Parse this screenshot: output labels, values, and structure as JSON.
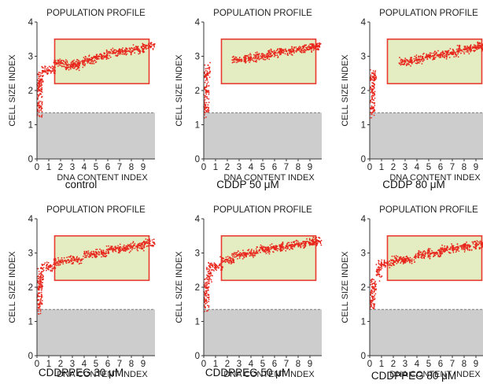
{
  "chart_data": [
    {
      "type": "scatter",
      "title": "POPULATION PROFILE",
      "xlabel": "DNA CONTENT INDEX",
      "ylabel": "CELL SIZE INDEX",
      "xlim": [
        0,
        10
      ],
      "ylim": [
        0,
        4
      ],
      "x_ticks": [
        "0",
        "1",
        "2",
        "3",
        "4",
        "5",
        "6",
        "7",
        "8",
        "9"
      ],
      "y_ticks": [
        "0",
        "1",
        "2",
        "3",
        "4"
      ],
      "gate": {
        "x": [
          1.5,
          9.5
        ],
        "y": [
          2.2,
          3.5
        ]
      },
      "threshold_y": 1.35,
      "caption": "control",
      "series": [
        {
          "values": [
            {
              "x": 0.2,
              "y": 1.5
            },
            {
              "x": 0.2,
              "y": 2.0
            },
            {
              "x": 0.3,
              "y": 2.3
            },
            {
              "x": 1.0,
              "y": 2.6
            },
            {
              "x": 2.0,
              "y": 2.8
            },
            {
              "x": 3.0,
              "y": 2.7
            },
            {
              "x": 3.5,
              "y": 2.8
            },
            {
              "x": 4.5,
              "y": 2.9
            },
            {
              "x": 5.5,
              "y": 3.0
            },
            {
              "x": 6.5,
              "y": 3.1
            },
            {
              "x": 7.5,
              "y": 3.15
            },
            {
              "x": 8.5,
              "y": 3.2
            },
            {
              "x": 9.5,
              "y": 3.3
            }
          ]
        }
      ]
    },
    {
      "type": "scatter",
      "title": "POPULATION PROFILE",
      "xlabel": "DNA CONTENT INDEX",
      "ylabel": "CELL SIZE INDEX",
      "xlim": [
        0,
        10
      ],
      "ylim": [
        0,
        4
      ],
      "x_ticks": [
        "0",
        "1",
        "2",
        "3",
        "4",
        "5",
        "6",
        "7",
        "8",
        "9"
      ],
      "y_ticks": [
        "0",
        "1",
        "2",
        "3",
        "4"
      ],
      "gate": {
        "x": [
          1.5,
          9.5
        ],
        "y": [
          2.2,
          3.5
        ]
      },
      "threshold_y": 1.35,
      "caption": "CDDP  50 μM",
      "series": [
        {
          "values": [
            {
              "x": 0.2,
              "y": 1.5
            },
            {
              "x": 0.2,
              "y": 2.0
            },
            {
              "x": 0.3,
              "y": 2.5
            },
            {
              "x": 3.0,
              "y": 2.9
            },
            {
              "x": 4.0,
              "y": 2.95
            },
            {
              "x": 5.0,
              "y": 3.0
            },
            {
              "x": 6.0,
              "y": 3.1
            },
            {
              "x": 7.0,
              "y": 3.15
            },
            {
              "x": 8.0,
              "y": 3.2
            },
            {
              "x": 9.0,
              "y": 3.25
            },
            {
              "x": 9.7,
              "y": 3.3
            }
          ]
        }
      ]
    },
    {
      "type": "scatter",
      "title": "POPULATION PROFILE",
      "xlabel": "DNA CONTENT INDEX",
      "ylabel": "CELL SIZE INDEX",
      "xlim": [
        0,
        10
      ],
      "ylim": [
        0,
        4
      ],
      "x_ticks": [
        "0",
        "1",
        "2",
        "3",
        "4",
        "5",
        "6",
        "7",
        "8",
        "9"
      ],
      "y_ticks": [
        "0",
        "1",
        "2",
        "3",
        "4"
      ],
      "gate": {
        "x": [
          1.5,
          9.5
        ],
        "y": [
          2.2,
          3.5
        ]
      },
      "threshold_y": 1.35,
      "caption": "CDDP  80 μM",
      "series": [
        {
          "values": [
            {
              "x": 0.2,
              "y": 1.5
            },
            {
              "x": 0.2,
              "y": 2.0
            },
            {
              "x": 0.3,
              "y": 2.4
            },
            {
              "x": 3.0,
              "y": 2.85
            },
            {
              "x": 4.0,
              "y": 2.9
            },
            {
              "x": 5.0,
              "y": 3.0
            },
            {
              "x": 6.0,
              "y": 3.05
            },
            {
              "x": 7.0,
              "y": 3.1
            },
            {
              "x": 8.0,
              "y": 3.2
            },
            {
              "x": 9.0,
              "y": 3.25
            },
            {
              "x": 9.7,
              "y": 3.3
            }
          ]
        }
      ]
    },
    {
      "type": "scatter",
      "title": "POPULATION PROFILE",
      "xlabel": "DNA CONTENT INDEX",
      "ylabel": "CELL SIZE INDEX",
      "xlim": [
        0,
        10
      ],
      "ylim": [
        0,
        4
      ],
      "x_ticks": [
        "0",
        "1",
        "2",
        "3",
        "4",
        "5",
        "6",
        "7",
        "8",
        "9"
      ],
      "y_ticks": [
        "0",
        "1",
        "2",
        "3",
        "4"
      ],
      "gate": {
        "x": [
          1.5,
          9.5
        ],
        "y": [
          2.2,
          3.5
        ]
      },
      "threshold_y": 1.35,
      "caption": "CDDPPEG 30 μM",
      "series": [
        {
          "values": [
            {
              "x": 0.2,
              "y": 1.5
            },
            {
              "x": 0.2,
              "y": 2.0
            },
            {
              "x": 0.3,
              "y": 2.3
            },
            {
              "x": 1.0,
              "y": 2.6
            },
            {
              "x": 2.0,
              "y": 2.75
            },
            {
              "x": 3.2,
              "y": 2.8
            },
            {
              "x": 4.5,
              "y": 2.95
            },
            {
              "x": 5.5,
              "y": 3.0
            },
            {
              "x": 6.5,
              "y": 3.1
            },
            {
              "x": 7.5,
              "y": 3.15
            },
            {
              "x": 8.5,
              "y": 3.2
            },
            {
              "x": 9.5,
              "y": 3.3
            }
          ]
        }
      ]
    },
    {
      "type": "scatter",
      "title": "POPULATION PROFILE",
      "xlabel": "DNA CONTENT INDEX",
      "ylabel": "CELL SIZE INDEX",
      "xlim": [
        0,
        10
      ],
      "ylim": [
        0,
        4
      ],
      "x_ticks": [
        "0",
        "1",
        "2",
        "3",
        "4",
        "5",
        "6",
        "7",
        "8",
        "9"
      ],
      "y_ticks": [
        "0",
        "1",
        "2",
        "3",
        "4"
      ],
      "gate": {
        "x": [
          1.5,
          9.5
        ],
        "y": [
          2.2,
          3.5
        ]
      },
      "threshold_y": 1.35,
      "caption": "CDDPPEG 50 μM",
      "series": [
        {
          "values": [
            {
              "x": 0.2,
              "y": 1.6
            },
            {
              "x": 0.2,
              "y": 2.0
            },
            {
              "x": 0.5,
              "y": 2.4
            },
            {
              "x": 1.0,
              "y": 2.6
            },
            {
              "x": 2.0,
              "y": 2.8
            },
            {
              "x": 3.0,
              "y": 2.95
            },
            {
              "x": 4.0,
              "y": 3.0
            },
            {
              "x": 5.0,
              "y": 3.1
            },
            {
              "x": 6.0,
              "y": 3.15
            },
            {
              "x": 7.0,
              "y": 3.2
            },
            {
              "x": 8.0,
              "y": 3.25
            },
            {
              "x": 9.0,
              "y": 3.3
            },
            {
              "x": 9.7,
              "y": 3.35
            }
          ]
        }
      ]
    },
    {
      "type": "scatter",
      "title": "POPULATION PROFILE",
      "xlabel": "DNA CONTENT INDEX",
      "ylabel": "CELL SIZE INDEX",
      "xlim": [
        0,
        10
      ],
      "ylim": [
        0,
        4
      ],
      "x_ticks": [
        "0",
        "1",
        "2",
        "3",
        "4",
        "5",
        "6",
        "7",
        "8",
        "9"
      ],
      "y_ticks": [
        "0",
        "1",
        "2",
        "3",
        "4"
      ],
      "gate": {
        "x": [
          1.5,
          9.5
        ],
        "y": [
          2.2,
          3.5
        ]
      },
      "threshold_y": 1.35,
      "caption": "CDDPPEG 80 μM",
      "series": [
        {
          "values": [
            {
              "x": 0.2,
              "y": 1.6
            },
            {
              "x": 0.3,
              "y": 2.0
            },
            {
              "x": 0.8,
              "y": 2.5
            },
            {
              "x": 1.5,
              "y": 2.7
            },
            {
              "x": 2.5,
              "y": 2.8
            },
            {
              "x": 3.3,
              "y": 2.8
            },
            {
              "x": 4.5,
              "y": 2.95
            },
            {
              "x": 5.5,
              "y": 3.0
            },
            {
              "x": 6.5,
              "y": 3.1
            },
            {
              "x": 7.5,
              "y": 3.15
            },
            {
              "x": 8.5,
              "y": 3.2
            },
            {
              "x": 9.5,
              "y": 3.25
            }
          ]
        }
      ]
    }
  ],
  "colors": {
    "points": "#e8271d",
    "gate_fill": "#e4edc1",
    "gate_stroke": "#e83a30",
    "threshold_fill": "#cdcdcd",
    "threshold_line": "#7a7a7a",
    "axis": "#333333"
  }
}
